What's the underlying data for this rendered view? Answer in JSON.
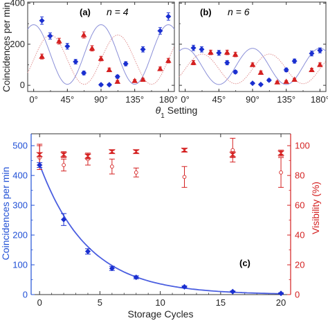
{
  "chart_data": [
    {
      "panel": "a",
      "type": "scatter",
      "panel_label": "(a)",
      "annotation": "n = 4",
      "ylabel": "Coincidences per min",
      "xlim": [
        -8,
        188
      ],
      "ylim": [
        -30,
        405
      ],
      "x_ticks": [
        0,
        45,
        90,
        135,
        180
      ],
      "x_tick_labels": [
        "0°",
        "45°",
        "90°",
        "135°",
        "180°"
      ],
      "y_ticks": [
        0,
        200,
        400
      ],
      "y_tick_labels": [
        "0",
        "200",
        "400"
      ],
      "series": [
        {
          "color": "#1a2fd0",
          "marker": "diamond",
          "points": [
            {
              "x": 11,
              "y": 315,
              "err": 18
            },
            {
              "x": 22,
              "y": 240,
              "err": 15
            },
            {
              "x": 45,
              "y": 190,
              "err": 14
            },
            {
              "x": 56,
              "y": 115,
              "err": 11
            },
            {
              "x": 67,
              "y": 60,
              "err": 9
            },
            {
              "x": 90,
              "y": 3,
              "err": 5
            },
            {
              "x": 101,
              "y": 3,
              "err": 5
            },
            {
              "x": 112,
              "y": 42,
              "err": 8
            },
            {
              "x": 123,
              "y": 105,
              "err": 10
            },
            {
              "x": 146,
              "y": 175,
              "err": 13
            },
            {
              "x": 169,
              "y": 265,
              "err": 16
            },
            {
              "x": 180,
              "y": 335,
              "err": 18
            }
          ]
        },
        {
          "color": "#d42020",
          "marker": "triangle",
          "points": [
            {
              "x": 11,
              "y": 140,
              "err": 12
            },
            {
              "x": 34,
              "y": 215,
              "err": 14
            },
            {
              "x": 67,
              "y": 245,
              "err": 15
            },
            {
              "x": 78,
              "y": 180,
              "err": 13
            },
            {
              "x": 90,
              "y": 130,
              "err": 11
            },
            {
              "x": 101,
              "y": 75,
              "err": 9
            },
            {
              "x": 112,
              "y": 18,
              "err": 6
            },
            {
              "x": 135,
              "y": 22,
              "err": 6
            },
            {
              "x": 146,
              "y": 28,
              "err": 6
            },
            {
              "x": 169,
              "y": 80,
              "err": 9
            },
            {
              "x": 180,
              "y": 120,
              "err": 11
            }
          ]
        }
      ],
      "fits": [
        {
          "color": "#8a8fd8",
          "style": "solid",
          "amplitude": 145,
          "offset": 150,
          "phase_deg": 0
        },
        {
          "color": "#e09090",
          "style": "dotted",
          "amplitude": 120,
          "offset": 125,
          "phase_deg": 22.5
        }
      ]
    },
    {
      "panel": "b",
      "type": "scatter",
      "panel_label": "(b)",
      "annotation": "n = 6",
      "xlim": [
        -8,
        188
      ],
      "ylim": [
        -30,
        405
      ],
      "x_ticks": [
        0,
        45,
        90,
        135,
        180
      ],
      "x_tick_labels": [
        "0°",
        "45°",
        "90°",
        "135°",
        "180°"
      ],
      "y_ticks": [
        0,
        200,
        400
      ],
      "series": [
        {
          "color": "#1a2fd0",
          "marker": "diamond",
          "points": [
            {
              "x": 11,
              "y": 182,
              "err": 13
            },
            {
              "x": 22,
              "y": 175,
              "err": 13
            },
            {
              "x": 45,
              "y": 158,
              "err": 12
            },
            {
              "x": 56,
              "y": 110,
              "err": 10
            },
            {
              "x": 67,
              "y": 65,
              "err": 8
            },
            {
              "x": 90,
              "y": 10,
              "err": 5
            },
            {
              "x": 101,
              "y": 4,
              "err": 4
            },
            {
              "x": 112,
              "y": 25,
              "err": 6
            },
            {
              "x": 135,
              "y": 75,
              "err": 9
            },
            {
              "x": 146,
              "y": 118,
              "err": 10
            },
            {
              "x": 169,
              "y": 155,
              "err": 12
            },
            {
              "x": 180,
              "y": 170,
              "err": 12
            }
          ]
        },
        {
          "color": "#d42020",
          "marker": "triangle",
          "points": [
            {
              "x": 11,
              "y": 110,
              "err": 10
            },
            {
              "x": 34,
              "y": 160,
              "err": 11
            },
            {
              "x": 56,
              "y": 160,
              "err": 11
            },
            {
              "x": 67,
              "y": 150,
              "err": 11
            },
            {
              "x": 90,
              "y": 100,
              "err": 9
            },
            {
              "x": 101,
              "y": 62,
              "err": 8
            },
            {
              "x": 123,
              "y": 15,
              "err": 5
            },
            {
              "x": 135,
              "y": 18,
              "err": 5
            },
            {
              "x": 146,
              "y": 28,
              "err": 6
            },
            {
              "x": 169,
              "y": 75,
              "err": 8
            },
            {
              "x": 180,
              "y": 100,
              "err": 9
            }
          ]
        }
      ],
      "fits": [
        {
          "color": "#8a8fd8",
          "style": "solid",
          "amplitude": 88,
          "offset": 92,
          "phase_deg": 0
        },
        {
          "color": "#e09090",
          "style": "dotted",
          "amplitude": 72,
          "offset": 80,
          "phase_deg": 22.5
        }
      ]
    },
    {
      "panel": "c",
      "type": "scatter",
      "panel_label": "(c)",
      "shared_xlabel_top": "θ1 Setting",
      "xlabel": "Storage Cycles",
      "ylabel_left": "Coincidences per min",
      "ylabel_right": "Visibility (%)",
      "xlim": [
        -0.7,
        20.8
      ],
      "ylim_left": [
        0,
        540
      ],
      "ylim_right": [
        0,
        108
      ],
      "x_ticks": [
        0,
        5,
        10,
        15,
        20
      ],
      "y_ticks_left": [
        0,
        100,
        200,
        300,
        400,
        500
      ],
      "y_ticks_right": [
        0,
        20,
        40,
        60,
        80,
        100
      ],
      "left_color": "#1f4fd6",
      "right_color": "#d42020",
      "coincidences": [
        {
          "x": 0,
          "y": 435,
          "err": 8
        },
        {
          "x": 2,
          "y": 252,
          "err": 20
        },
        {
          "x": 4,
          "y": 145,
          "err": 9
        },
        {
          "x": 6,
          "y": 88,
          "err": 7
        },
        {
          "x": 8,
          "y": 58,
          "err": 5
        },
        {
          "x": 12,
          "y": 26,
          "err": 3
        },
        {
          "x": 16,
          "y": 10,
          "err": 2
        },
        {
          "x": 20,
          "y": 4,
          "err": 2
        }
      ],
      "fit": {
        "type": "exponential",
        "amplitude": 437,
        "decay_per_cycle": 0.25
      },
      "visibility_filled": [
        {
          "x": 0,
          "y": 94,
          "err": 7
        },
        {
          "x": 2,
          "y": 94,
          "err": 2
        },
        {
          "x": 4,
          "y": 93,
          "err": 2
        },
        {
          "x": 6,
          "y": 96,
          "err": 1
        },
        {
          "x": 8,
          "y": 96,
          "err": 1
        },
        {
          "x": 12,
          "y": 97,
          "err": 1
        },
        {
          "x": 16,
          "y": 94,
          "err": 2
        },
        {
          "x": 20,
          "y": 95,
          "err": 2
        }
      ],
      "visibility_open": [
        {
          "x": 0,
          "y": 92,
          "err": 8
        },
        {
          "x": 2,
          "y": 87,
          "err": 4
        },
        {
          "x": 4,
          "y": 91,
          "err": 4
        },
        {
          "x": 6,
          "y": 86,
          "err": 5
        },
        {
          "x": 8,
          "y": 82,
          "err": 3
        },
        {
          "x": 12,
          "y": 79,
          "err": 7
        },
        {
          "x": 16,
          "y": 97,
          "err": 8
        },
        {
          "x": 20,
          "y": 82,
          "err": 10
        }
      ]
    }
  ]
}
